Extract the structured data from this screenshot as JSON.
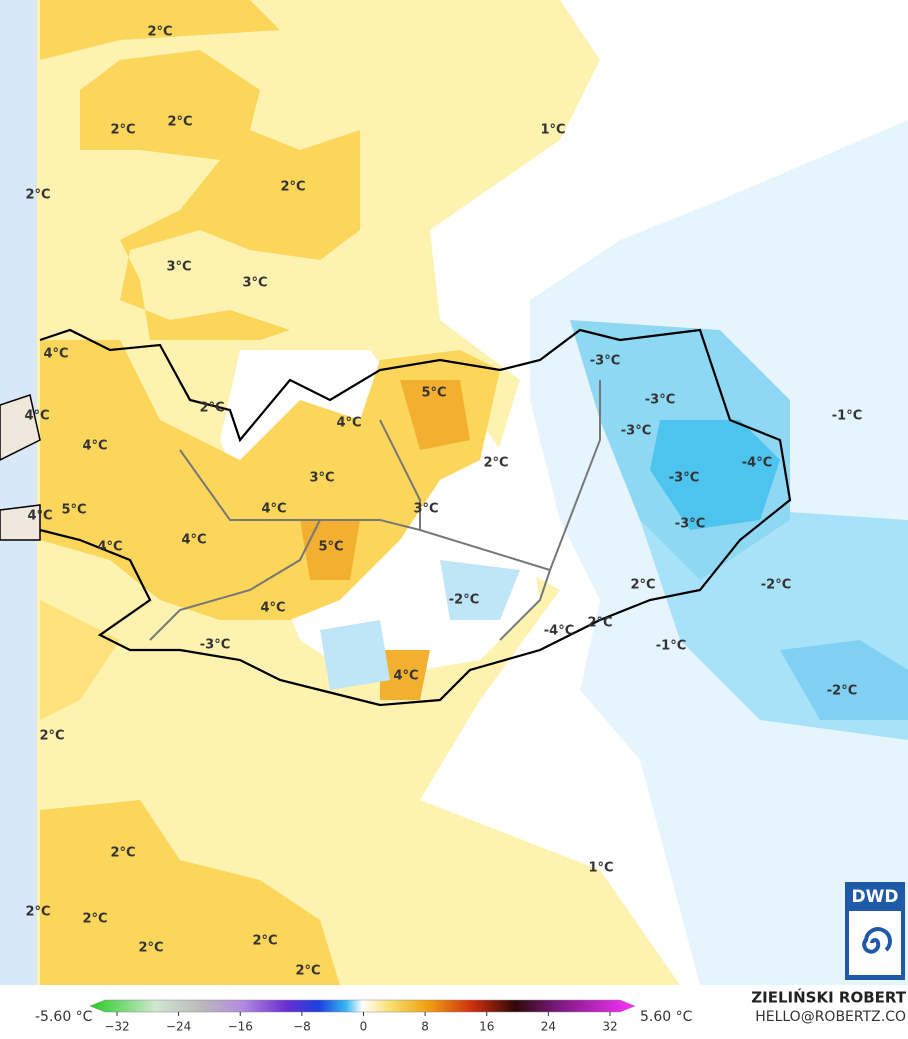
{
  "map": {
    "labels": [
      "2°C",
      "2°C",
      "2°C",
      "2°C",
      "2°C",
      "1°C",
      "3°C",
      "3°C",
      "4°C",
      "-3°C",
      "5°C",
      "2°C",
      "-3°C",
      "-1°C",
      "4°C",
      "4°C",
      "-3°C",
      "4°C",
      "2°C",
      "-4°C",
      "3°C",
      "-3°C",
      "4°C",
      "5°C",
      "4°C",
      "3°C",
      "-3°C",
      "4°C",
      "4°C",
      "5°C",
      "-2°C",
      "2°C",
      "-2°C",
      "4°C",
      "2°C",
      "-4°C",
      "-3°C",
      "-1°C",
      "4°C",
      "-2°C",
      "2°C",
      "2°C",
      "1°C",
      "2°C",
      "2°C",
      "2°C",
      "2°C",
      "2°C"
    ]
  },
  "colorbar": {
    "min_label": "-5.60 °C",
    "max_label": "5.60 °C",
    "ticks": [
      "−32",
      "−24",
      "−16",
      "−8",
      "0",
      "8",
      "16",
      "24",
      "32"
    ]
  },
  "credits": {
    "author": "ZIELIŃSKI ROBERT",
    "contact": "HELLO@ROBERTZ.CO",
    "logo": "DWD"
  }
}
